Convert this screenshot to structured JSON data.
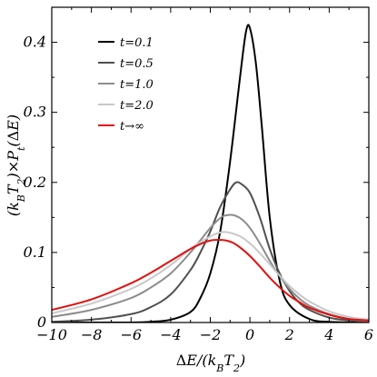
{
  "chart_data": {
    "type": "line",
    "title": "",
    "xlabel": "ΔE/(kBT2)",
    "ylabel": "(kBT2)×Pt(ΔE)",
    "xlim": [
      -10,
      6
    ],
    "ylim": [
      0,
      0.45
    ],
    "xticks": [
      -10,
      -8,
      -6,
      -4,
      -2,
      0,
      2,
      4,
      6
    ],
    "yticks": [
      0,
      0.1,
      0.2,
      0.3,
      0.4
    ],
    "xtick_labels": [
      "−10",
      "−8",
      "−6",
      "−4",
      "−2",
      "0",
      "2",
      "4",
      "6"
    ],
    "ytick_labels": [
      "0",
      "0.1",
      "0.2",
      "0.3",
      "0.4"
    ],
    "grid": false,
    "legend_position": "top-left",
    "series": [
      {
        "name": "t=0.1",
        "color": "#000000",
        "x": [
          -10,
          -8,
          -6,
          -5,
          -4,
          -3,
          -2.5,
          -2,
          -1.5,
          -1,
          -0.5,
          -0.2,
          0,
          0.3,
          0.6,
          1,
          1.5,
          2,
          3,
          4,
          6
        ],
        "y": [
          0,
          0,
          0,
          0.001,
          0.004,
          0.015,
          0.035,
          0.07,
          0.13,
          0.23,
          0.35,
          0.415,
          0.42,
          0.37,
          0.28,
          0.15,
          0.06,
          0.025,
          0.005,
          0.001,
          0
        ]
      },
      {
        "name": "t=0.5",
        "color": "#505050",
        "x": [
          -10,
          -8,
          -6,
          -5,
          -4,
          -3,
          -2.5,
          -2,
          -1.5,
          -1,
          -0.7,
          -0.4,
          0,
          0.5,
          1,
          1.5,
          2,
          2.5,
          3,
          4,
          5,
          6
        ],
        "y": [
          0.001,
          0.004,
          0.012,
          0.022,
          0.04,
          0.075,
          0.1,
          0.13,
          0.165,
          0.19,
          0.2,
          0.197,
          0.185,
          0.15,
          0.105,
          0.07,
          0.045,
          0.028,
          0.018,
          0.007,
          0.003,
          0.001
        ]
      },
      {
        "name": "t=1.0",
        "color": "#8c8c8c",
        "x": [
          -10,
          -8,
          -6,
          -5,
          -4,
          -3,
          -2,
          -1.5,
          -1.2,
          -0.8,
          -0.4,
          0,
          0.5,
          1,
          1.5,
          2,
          2.5,
          3,
          4,
          5,
          6
        ],
        "y": [
          0.008,
          0.018,
          0.035,
          0.05,
          0.07,
          0.1,
          0.135,
          0.149,
          0.153,
          0.153,
          0.147,
          0.135,
          0.113,
          0.088,
          0.066,
          0.048,
          0.034,
          0.024,
          0.012,
          0.005,
          0.002
        ]
      },
      {
        "name": "t=2.0",
        "color": "#c8c8c8",
        "x": [
          -10,
          -8,
          -6,
          -5,
          -4,
          -3,
          -2,
          -1.4,
          -1,
          -0.5,
          0,
          0.5,
          1,
          1.5,
          2,
          2.5,
          3,
          4,
          5,
          6
        ],
        "y": [
          0.013,
          0.027,
          0.048,
          0.063,
          0.082,
          0.105,
          0.123,
          0.129,
          0.128,
          0.123,
          0.113,
          0.099,
          0.083,
          0.067,
          0.052,
          0.04,
          0.03,
          0.016,
          0.008,
          0.004
        ]
      },
      {
        "name": "t→∞",
        "color": "#e01010",
        "x": [
          -10,
          -8,
          -6,
          -5,
          -4,
          -3,
          -2.5,
          -2,
          -1.6,
          -1.2,
          -0.8,
          -0.4,
          0,
          0.5,
          1,
          1.5,
          2,
          2.5,
          3,
          4,
          5,
          6
        ],
        "y": [
          0.018,
          0.033,
          0.056,
          0.071,
          0.088,
          0.105,
          0.112,
          0.117,
          0.118,
          0.117,
          0.113,
          0.105,
          0.095,
          0.08,
          0.064,
          0.05,
          0.038,
          0.029,
          0.021,
          0.011,
          0.005,
          0.003
        ]
      }
    ]
  }
}
